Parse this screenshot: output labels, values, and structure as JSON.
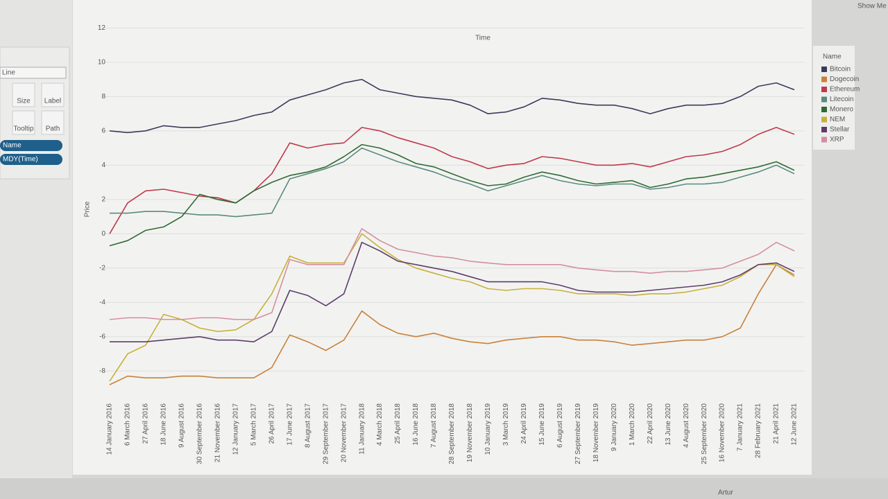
{
  "chart_data": {
    "type": "line",
    "x_title": "Time",
    "y_title": "Price",
    "legend_title": "Name",
    "grid": true,
    "ylim": [
      -9,
      12.5
    ],
    "yticks": [
      -8,
      -6,
      -4,
      -2,
      0,
      2,
      4,
      6,
      8,
      10,
      12
    ],
    "categories": [
      "14 January 2016",
      "6 March 2016",
      "27 April 2016",
      "18 June 2016",
      "9 August 2016",
      "30 September 2016",
      "21 November 2016",
      "12 January 2017",
      "5 March 2017",
      "26 April 2017",
      "17 June 2017",
      "8 August 2017",
      "29 September 2017",
      "20 November 2017",
      "11 January 2018",
      "4 March 2018",
      "25 April 2018",
      "16 June 2018",
      "7 August 2018",
      "28 September 2018",
      "19 November 2018",
      "10 January 2019",
      "3 March 2019",
      "24 April 2019",
      "15 June 2019",
      "6 August 2019",
      "27 September 2019",
      "18 November 2019",
      "9 January 2020",
      "1 March 2020",
      "22 April 2020",
      "13 June 2020",
      "4 August 2020",
      "25 September 2020",
      "16 November 2020",
      "7 January 2021",
      "28 February 2021",
      "21 April 2021",
      "12 June 2021"
    ],
    "series": [
      {
        "name": "Bitcoin",
        "color": "#3b3a5a",
        "values": [
          6.0,
          5.9,
          6.0,
          6.3,
          6.2,
          6.2,
          6.4,
          6.6,
          6.9,
          7.1,
          7.8,
          8.1,
          8.4,
          8.8,
          9.0,
          8.4,
          8.2,
          8.0,
          7.9,
          7.8,
          7.5,
          7.0,
          7.1,
          7.4,
          7.9,
          7.8,
          7.6,
          7.5,
          7.5,
          7.3,
          7.0,
          7.3,
          7.5,
          7.5,
          7.6,
          8.0,
          8.6,
          8.8,
          8.4
        ]
      },
      {
        "name": "Dogecoin",
        "color": "#c9803a",
        "values": [
          -8.8,
          -8.3,
          -8.4,
          -8.4,
          -8.3,
          -8.3,
          -8.4,
          -8.4,
          -8.4,
          -7.8,
          -5.9,
          -6.3,
          -6.8,
          -6.2,
          -4.5,
          -5.3,
          -5.8,
          -6.0,
          -5.8,
          -6.1,
          -6.3,
          -6.4,
          -6.2,
          -6.1,
          -6.0,
          -6.0,
          -6.2,
          -6.2,
          -6.3,
          -6.5,
          -6.4,
          -6.3,
          -6.2,
          -6.2,
          -6.0,
          -5.5,
          -3.5,
          -1.8,
          -2.4
        ]
      },
      {
        "name": "Ethereum",
        "color": "#c0394b",
        "values": [
          0.0,
          1.8,
          2.5,
          2.6,
          2.4,
          2.2,
          2.1,
          1.8,
          2.5,
          3.5,
          5.3,
          5.0,
          5.2,
          5.3,
          6.2,
          6.0,
          5.6,
          5.3,
          5.0,
          4.5,
          4.2,
          3.8,
          4.0,
          4.1,
          4.5,
          4.4,
          4.2,
          4.0,
          4.0,
          4.1,
          3.9,
          4.2,
          4.5,
          4.6,
          4.8,
          5.2,
          5.8,
          6.2,
          5.8
        ]
      },
      {
        "name": "Litecoin",
        "color": "#5a8a80",
        "values": [
          1.2,
          1.2,
          1.3,
          1.3,
          1.2,
          1.1,
          1.1,
          1.0,
          1.1,
          1.2,
          3.2,
          3.5,
          3.8,
          4.2,
          5.0,
          4.6,
          4.2,
          3.9,
          3.6,
          3.2,
          2.9,
          2.5,
          2.8,
          3.1,
          3.4,
          3.1,
          2.9,
          2.8,
          2.9,
          2.9,
          2.6,
          2.7,
          2.9,
          2.9,
          3.0,
          3.3,
          3.6,
          4.0,
          3.5
        ]
      },
      {
        "name": "Monero",
        "color": "#2f6a33",
        "values": [
          -0.7,
          -0.4,
          0.2,
          0.4,
          1.0,
          2.3,
          2.0,
          1.8,
          2.5,
          3.0,
          3.4,
          3.6,
          3.9,
          4.5,
          5.2,
          5.0,
          4.6,
          4.1,
          3.9,
          3.5,
          3.1,
          2.8,
          2.9,
          3.3,
          3.6,
          3.4,
          3.1,
          2.9,
          3.0,
          3.1,
          2.7,
          2.9,
          3.2,
          3.3,
          3.5,
          3.7,
          3.9,
          4.2,
          3.7
        ]
      },
      {
        "name": "NEM",
        "color": "#c8b03a",
        "values": [
          -8.6,
          -7.0,
          -6.5,
          -4.7,
          -5.0,
          -5.5,
          -5.7,
          -5.6,
          -5.0,
          -3.5,
          -1.3,
          -1.7,
          -1.7,
          -1.7,
          0.0,
          -0.8,
          -1.5,
          -2.0,
          -2.3,
          -2.6,
          -2.8,
          -3.2,
          -3.3,
          -3.2,
          -3.2,
          -3.3,
          -3.5,
          -3.5,
          -3.5,
          -3.6,
          -3.5,
          -3.5,
          -3.4,
          -3.2,
          -3.0,
          -2.5,
          -1.8,
          -1.8,
          -2.5
        ]
      },
      {
        "name": "Stellar",
        "color": "#5e3c6a",
        "values": [
          -6.3,
          -6.3,
          -6.3,
          -6.2,
          -6.1,
          -6.0,
          -6.2,
          -6.2,
          -6.3,
          -5.7,
          -3.3,
          -3.6,
          -4.2,
          -3.5,
          -0.5,
          -1.0,
          -1.6,
          -1.8,
          -2.0,
          -2.2,
          -2.5,
          -2.8,
          -2.8,
          -2.8,
          -2.8,
          -3.0,
          -3.3,
          -3.4,
          -3.4,
          -3.4,
          -3.3,
          -3.2,
          -3.1,
          -3.0,
          -2.8,
          -2.4,
          -1.8,
          -1.7,
          -2.2
        ]
      },
      {
        "name": "XRP",
        "color": "#d48ea0",
        "values": [
          -5.0,
          -4.9,
          -4.9,
          -5.0,
          -5.0,
          -4.9,
          -4.9,
          -5.0,
          -5.0,
          -4.6,
          -1.5,
          -1.8,
          -1.8,
          -1.8,
          0.3,
          -0.4,
          -0.9,
          -1.1,
          -1.3,
          -1.4,
          -1.6,
          -1.7,
          -1.8,
          -1.8,
          -1.8,
          -1.8,
          -2.0,
          -2.1,
          -2.2,
          -2.2,
          -2.3,
          -2.2,
          -2.2,
          -2.1,
          -2.0,
          -1.6,
          -1.2,
          -0.5,
          -1.0
        ]
      }
    ]
  },
  "ui": {
    "mark_type": "Line",
    "cards": [
      "Size",
      "Label",
      "Tooltip",
      "Path"
    ],
    "pills": [
      "Name",
      "MDY(Time)"
    ],
    "show_me": "Show Me",
    "user": "Artur"
  }
}
